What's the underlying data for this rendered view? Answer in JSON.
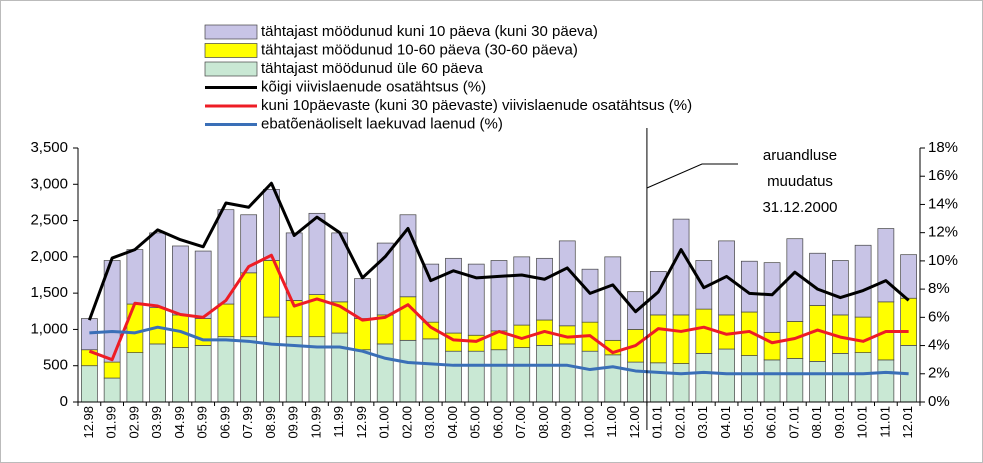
{
  "chart_data": {
    "type": "stacked-bar-line",
    "categories": [
      "12.98",
      "01.99",
      "02.99",
      "03.99",
      "04.99",
      "05.99",
      "06.99",
      "07.99",
      "08.99",
      "09.99",
      "10.99",
      "11.99",
      "12.99",
      "01.00",
      "02.00",
      "03.00",
      "04.00",
      "05.00",
      "06.00",
      "07.00",
      "08.00",
      "09.00",
      "10.00",
      "11.00",
      "12.00",
      "01.01",
      "02.01",
      "03.01",
      "04.01",
      "05.01",
      "06.01",
      "07.01",
      "08.01",
      "09.01",
      "10.01",
      "11.01",
      "12.01"
    ],
    "series": [
      {
        "name": "tähtajast möödunud üle 60 päeva",
        "color": "#c9e8d4",
        "kind": "bar",
        "values": [
          500,
          330,
          680,
          800,
          750,
          780,
          900,
          900,
          1170,
          900,
          900,
          950,
          720,
          800,
          850,
          870,
          700,
          700,
          720,
          750,
          780,
          800,
          700,
          650,
          550,
          540,
          530,
          670,
          730,
          640,
          580,
          600,
          560,
          670,
          680,
          580,
          780
        ]
      },
      {
        "name": "tähtajast möödunud 10-60 päeva (30-60 päeva)",
        "color": "#ffff00",
        "kind": "bar",
        "values": [
          220,
          220,
          670,
          500,
          450,
          370,
          450,
          880,
          780,
          500,
          580,
          430,
          430,
          400,
          600,
          230,
          250,
          220,
          260,
          310,
          350,
          250,
          400,
          200,
          450,
          660,
          670,
          610,
          470,
          600,
          380,
          510,
          770,
          530,
          490,
          800,
          650
        ]
      },
      {
        "name": "tähtajast möödunud kuni 10 päeva (kuni 30 päeva)",
        "color": "#c8c4e6",
        "kind": "bar",
        "values": [
          430,
          1400,
          750,
          1030,
          950,
          930,
          1300,
          800,
          980,
          930,
          1120,
          950,
          550,
          990,
          1130,
          800,
          1030,
          980,
          970,
          940,
          850,
          1170,
          730,
          1150,
          520,
          600,
          1320,
          670,
          1020,
          700,
          960,
          1140,
          720,
          750,
          990,
          1010,
          600
        ]
      },
      {
        "name": "kõigi viivislaenude osatähtsus (%)",
        "color": "#000000",
        "kind": "line",
        "axis": "y2",
        "values": [
          5.8,
          10.2,
          10.8,
          12.2,
          11.5,
          11.0,
          14.1,
          13.8,
          15.5,
          11.8,
          13.1,
          12.0,
          8.8,
          10.3,
          12.3,
          8.6,
          9.3,
          8.8,
          8.9,
          9.0,
          8.7,
          9.5,
          7.7,
          8.3,
          6.4,
          7.8,
          10.8,
          8.1,
          8.9,
          7.7,
          7.6,
          9.2,
          8.0,
          7.4,
          7.9,
          8.6,
          7.2
        ]
      },
      {
        "name": "kuni 10päevaste (kuni 30 päevaste) viivislaenude osatähtsus (%)",
        "color": "#ee1c25",
        "kind": "line",
        "axis": "y2",
        "values": [
          3.6,
          3.0,
          7.0,
          6.8,
          6.2,
          6.0,
          7.2,
          9.6,
          10.4,
          6.8,
          7.3,
          6.8,
          5.8,
          6.0,
          6.9,
          5.3,
          4.4,
          4.3,
          5.0,
          4.5,
          5.0,
          4.6,
          4.7,
          3.5,
          4.0,
          5.2,
          5.0,
          5.3,
          4.8,
          5.0,
          4.2,
          4.5,
          5.1,
          4.6,
          4.3,
          5.0,
          5.0
        ]
      },
      {
        "name": "ebatõenäoliselt laekuvad laenud (%)",
        "color": "#3a6fb7",
        "kind": "line",
        "axis": "y2",
        "values": [
          4.9,
          5.0,
          4.9,
          5.3,
          5.0,
          4.4,
          4.4,
          4.3,
          4.1,
          4.0,
          3.9,
          3.9,
          3.6,
          3.1,
          2.8,
          2.7,
          2.6,
          2.6,
          2.6,
          2.6,
          2.6,
          2.6,
          2.3,
          2.5,
          2.2,
          2.1,
          2.0,
          2.1,
          2.0,
          2.0,
          2.0,
          2.0,
          2.0,
          2.0,
          2.0,
          2.1,
          2.0
        ]
      }
    ],
    "ylim": [
      0,
      3500
    ],
    "yticks": [
      0,
      500,
      {
        "value": 1000,
        "label": "1,000"
      },
      {
        "value": 1500,
        "label": "1,500"
      },
      {
        "value": 2000,
        "label": "2,000"
      },
      {
        "value": 2500,
        "label": "2,500"
      },
      {
        "value": 3000,
        "label": "3,000"
      },
      {
        "value": 3500,
        "label": "3,500"
      }
    ],
    "y2lim": [
      0,
      18
    ],
    "y2ticks": [
      {
        "value": 0,
        "label": "0%"
      },
      {
        "value": 2,
        "label": "2%"
      },
      {
        "value": 4,
        "label": "4%"
      },
      {
        "value": 6,
        "label": "6%"
      },
      {
        "value": 8,
        "label": "8%"
      },
      {
        "value": 10,
        "label": "10%"
      },
      {
        "value": 12,
        "label": "12%"
      },
      {
        "value": 14,
        "label": "14%"
      },
      {
        "value": 16,
        "label": "16%"
      },
      {
        "value": 18,
        "label": "18%"
      }
    ],
    "annotation": [
      "aruandluse",
      "muudatus",
      "31.12.2000"
    ],
    "legend_order": [
      2,
      1,
      0,
      3,
      4,
      5
    ]
  }
}
